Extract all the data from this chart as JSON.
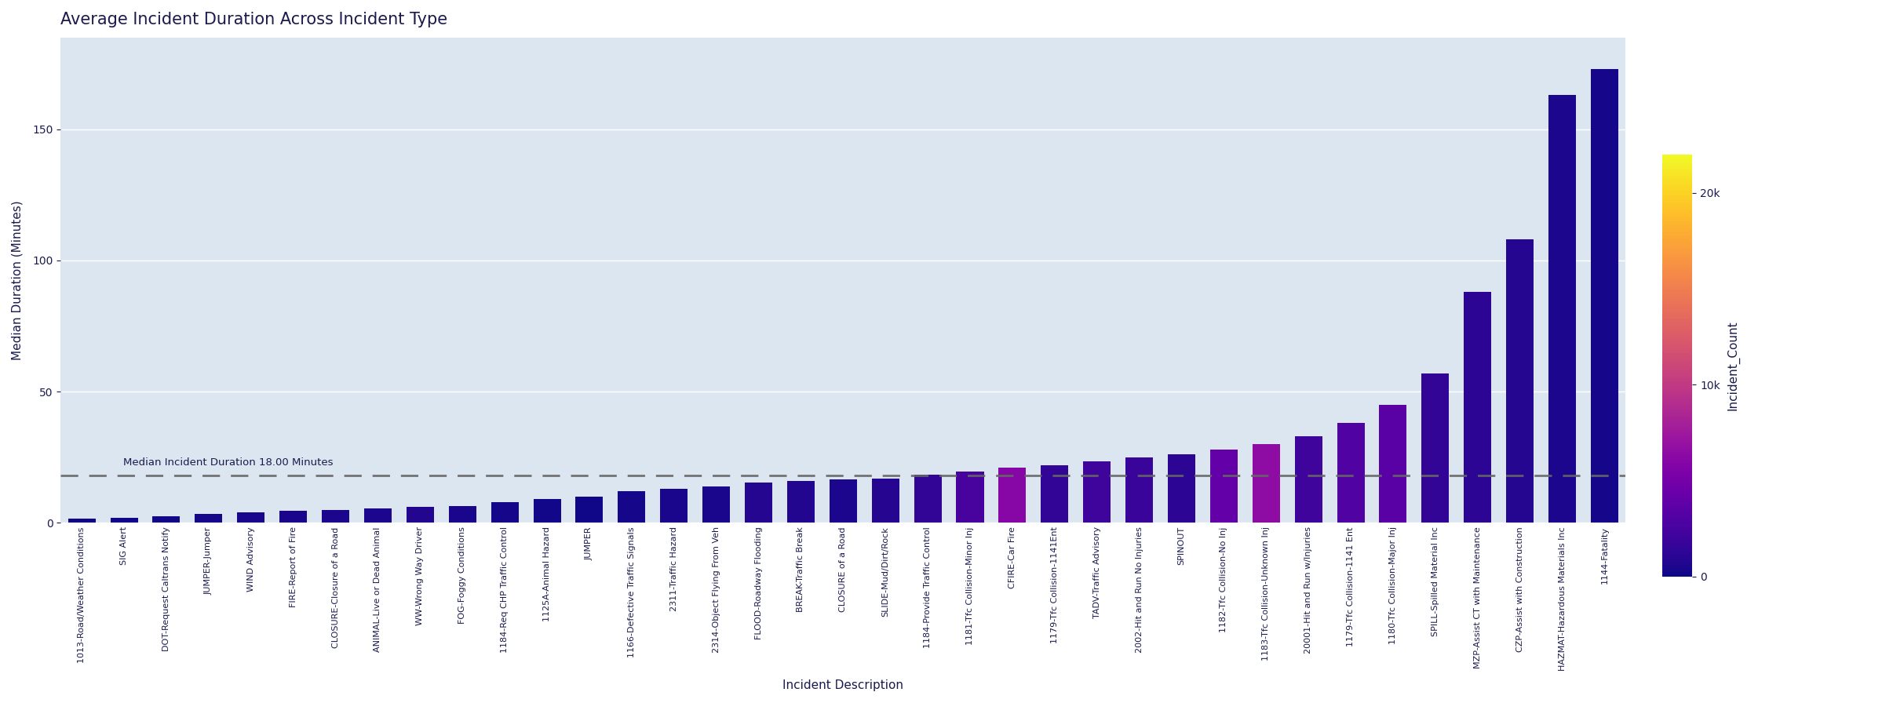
{
  "title": "Average Incident Duration Across Incident Type",
  "xlabel": "Incident Description",
  "ylabel": "Median Duration (Minutes)",
  "median_line": 18.0,
  "median_label": "Median Incident Duration 18.00 Minutes",
  "ylim": [
    0,
    185
  ],
  "background_color": "#dce6f1",
  "categories": [
    "1013-Road/Weather Conditions",
    "SIG Alert",
    "DOT-Request Caltrans Notify",
    "JUMPER-Jumper",
    "WIND Advisory",
    "FIRE-Report of Fire",
    "CLOSURE-Closure of a Road",
    "ANIMAL-Live or Dead Animal",
    "WW-Wrong Way Driver",
    "FOG-Foggy Conditions",
    "1184-Req CHP Traffic Control",
    "1125A-Animal Hazard",
    "JUMPER",
    "1166-Defective Traffic Signals",
    "2311-Traffic Hazard",
    "2314-Object Flying From Veh",
    "FLOOD-Roadway Flooding",
    "BREAK-Traffic Break",
    "CLOSURE of a Road",
    "SLIDE-Mud/Dirt/Rock",
    "1184-Provide Traffic Control",
    "1181-Tfc Collision-Minor Inj",
    "CFIRE-Car Fire",
    "1179-Tfc Collision-1141Ent",
    "TADV-Traffic Advisory",
    "2002-Hit and Run No Injuries",
    "SPINOUT",
    "1182-Tfc Collision-No Inj",
    "1183-Tfc Collision-Unknown Inj",
    "20001-Hit and Run w/Injuries",
    "1179-Tfc Collision-1141 Ent",
    "1180-Tfc Collision-Major Inj",
    "SPILL-Spilled Material Inc",
    "MZP-Assist CT with Maintenance",
    "CZP-Assist with Construction",
    "HAZMAT-Hazardous Materials Inc",
    "1144-Fatality"
  ],
  "durations": [
    1.5,
    2.0,
    2.5,
    3.5,
    4.0,
    4.5,
    5.0,
    5.5,
    6.0,
    6.5,
    8.0,
    9.0,
    10.0,
    12.0,
    13.0,
    14.0,
    15.5,
    16.0,
    16.5,
    17.0,
    18.5,
    19.5,
    21.0,
    22.0,
    23.5,
    25.0,
    26.0,
    28.0,
    30.0,
    33.0,
    38.0,
    45.0,
    57.0,
    88.0,
    108.0,
    163.0,
    173.0
  ],
  "incident_counts": [
    150,
    100,
    200,
    300,
    400,
    350,
    500,
    600,
    700,
    400,
    300,
    200,
    150,
    300,
    400,
    350,
    800,
    700,
    600,
    900,
    1500,
    2500,
    6000,
    1500,
    2000,
    1800,
    1200,
    4000,
    6500,
    2000,
    3000,
    3500,
    1500,
    1200,
    800,
    600,
    300
  ],
  "colormap": "plasma",
  "colorbar_label": "Incident_Count",
  "colorbar_ticks": [
    0,
    10000,
    20000
  ],
  "colorbar_ticklabels": [
    "0",
    "10k",
    "20k"
  ],
  "count_max": 22000,
  "title_fontsize": 15,
  "axis_label_fontsize": 11,
  "tick_fontsize": 8,
  "colorbar_label_fontsize": 11,
  "title_color": "#1a1a4e",
  "axis_color": "#1a1a4e",
  "median_line_color": "#666666",
  "median_text_color": "#1a1a4e"
}
